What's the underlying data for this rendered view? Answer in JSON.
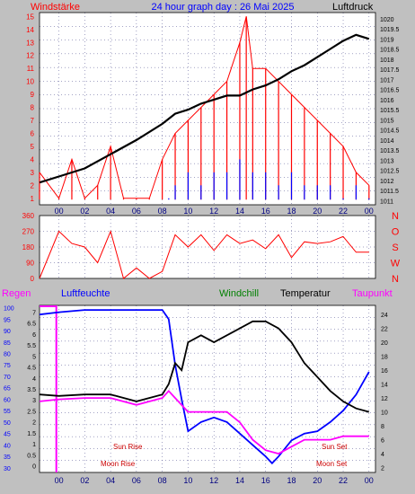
{
  "header": {
    "left_label": "Windstärke",
    "title": "24 hour graph day : 26 Mai 2025",
    "right_label": "Luftdruck"
  },
  "colors": {
    "panel_bg": "#c0c0c0",
    "plot_bg": "#ffffff",
    "grid": "#4a4a8c",
    "red": "#ff0000",
    "blue": "#0000ff",
    "black": "#000000",
    "magenta": "#ff00ff",
    "dark_red": "#cc0000",
    "green": "#008000"
  },
  "legend": {
    "regen": "Regen",
    "luftfeuchte": "Luftfeuchte",
    "windchill": "Windchill",
    "temperatur": "Temperatur",
    "taupunkt": "Taupunkt"
  },
  "annotations": {
    "sun_rise": "Sun Rise",
    "moon_rise": "Moon Rise",
    "sun_set": "Sun Set",
    "moon_set": "Moon Set"
  },
  "x_ticks": [
    "00",
    "02",
    "04",
    "06",
    "08",
    "10",
    "12",
    "14",
    "16",
    "18",
    "20",
    "22",
    "00"
  ],
  "chart_data": [
    {
      "type": "line",
      "name": "wind-pressure",
      "x_unit": "hour",
      "xlim": [
        -1.5,
        24.5
      ],
      "left_axis": {
        "title": "Windstärke",
        "ticks": [
          "1",
          "2",
          "3",
          "4",
          "5",
          "6",
          "7",
          "8",
          "9",
          "10",
          "11",
          "12",
          "13",
          "14",
          "15"
        ],
        "ylim": [
          0.5,
          15.3
        ]
      },
      "right_axis": {
        "title": "Luftdruck",
        "ticks": [
          "1011",
          "1011.5",
          "1012",
          "1012.5",
          "1013",
          "1013.5",
          "1014",
          "1014.5",
          "1015",
          "1015.5",
          "1016",
          "1016.5",
          "1017",
          "1017.5",
          "1018",
          "1018.5",
          "1019",
          "1019.5",
          "1020"
        ],
        "ylim": [
          1010.8,
          1020.3
        ]
      },
      "series": [
        {
          "name": "Luftdruck",
          "color": "#000000",
          "x": [
            -1.5,
            0,
            2,
            4,
            6,
            8,
            9,
            10,
            11,
            12,
            13,
            14,
            15,
            16,
            17,
            18,
            19,
            20,
            21,
            22,
            23,
            24
          ],
          "values": [
            1011.9,
            1012.2,
            1012.6,
            1013.3,
            1014.0,
            1014.8,
            1015.3,
            1015.5,
            1015.8,
            1016.0,
            1016.2,
            1016.2,
            1016.5,
            1016.7,
            1017.0,
            1017.4,
            1017.7,
            1018.1,
            1018.5,
            1018.9,
            1019.2,
            1019.0
          ]
        },
        {
          "name": "wind gust",
          "color": "#ff0000",
          "x": [
            -1.5,
            0,
            1,
            2,
            3,
            4,
            5,
            6,
            7,
            8,
            9,
            10,
            11,
            12,
            13,
            14,
            14.5,
            15,
            16,
            17,
            18,
            19,
            20,
            21,
            22,
            23,
            24
          ],
          "values": [
            3,
            1,
            4,
            1,
            2,
            5,
            1,
            1,
            1,
            4,
            6,
            7,
            8,
            9,
            10,
            13,
            15,
            11,
            11,
            10,
            9,
            8,
            7,
            6,
            5,
            3,
            2
          ]
        },
        {
          "name": "wind average",
          "color": "#0000ff",
          "x": [
            8.5,
            9,
            10,
            11,
            12,
            13,
            14,
            15,
            16,
            17,
            18,
            19,
            20,
            21,
            22,
            23,
            24
          ],
          "values": [
            1,
            2,
            3,
            2,
            3,
            3,
            4,
            3,
            3,
            2,
            3,
            2,
            2,
            2,
            1,
            2,
            1
          ]
        }
      ]
    },
    {
      "type": "line",
      "name": "wind-direction",
      "x_unit": "hour",
      "xlim": [
        -1.5,
        24.5
      ],
      "left_axis": {
        "ticks": [
          "0",
          "90",
          "180",
          "270",
          "360"
        ],
        "ylim": [
          0,
          360
        ]
      },
      "right_axis": {
        "ticks": [
          "N",
          "W",
          "S",
          "O",
          "N"
        ]
      },
      "series": [
        {
          "name": "direction",
          "color": "#ff0000",
          "x": [
            -1.5,
            0,
            1,
            2,
            3,
            4,
            5,
            6,
            7,
            8,
            9,
            10,
            11,
            12,
            13,
            14,
            15,
            16,
            17,
            18,
            19,
            20,
            21,
            22,
            23,
            24
          ],
          "values": [
            0,
            270,
            200,
            180,
            90,
            270,
            0,
            60,
            0,
            40,
            250,
            180,
            250,
            160,
            250,
            200,
            220,
            170,
            250,
            120,
            210,
            200,
            210,
            240,
            150,
            150
          ]
        }
      ]
    },
    {
      "type": "line",
      "name": "rain-humidity-temperature",
      "x_unit": "hour",
      "xlim": [
        -1.5,
        24.5
      ],
      "left_axis_rain": {
        "ticks": [
          "0",
          "0.5",
          "1",
          "1.5",
          "2",
          "2.5",
          "3",
          "3.5",
          "4",
          "4.5",
          "5",
          "5.5",
          "6",
          "6.5",
          "7"
        ],
        "ylim": [
          -0.3,
          7.3
        ]
      },
      "left_axis_humidity": {
        "ticks": [
          "30",
          "35",
          "40",
          "45",
          "50",
          "55",
          "60",
          "65",
          "70",
          "75",
          "80",
          "85",
          "90",
          "95",
          "100"
        ],
        "ylim": [
          28,
          101
        ]
      },
      "right_axis_temperature": {
        "ticks": [
          "2",
          "4",
          "6",
          "8",
          "10",
          "12",
          "14",
          "16",
          "18",
          "20",
          "22",
          "24"
        ],
        "ylim": [
          1.3,
          25.3
        ]
      },
      "series": [
        {
          "name": "Luftfeuchte",
          "color": "#0000ff",
          "x": [
            -1.5,
            0,
            2,
            4,
            6,
            8,
            8.5,
            9,
            9.5,
            10,
            11,
            12,
            13,
            14,
            15,
            16,
            16.5,
            17,
            18,
            19,
            20,
            21,
            22,
            23,
            24
          ],
          "values": [
            97,
            98,
            99,
            99,
            99,
            99,
            95,
            75,
            60,
            46,
            50,
            52,
            50,
            45,
            40,
            35,
            32,
            35,
            42,
            45,
            46,
            50,
            55,
            62,
            72
          ]
        },
        {
          "name": "Temperatur",
          "color": "#000000",
          "x": [
            -1.5,
            0,
            2,
            4,
            6,
            8,
            8.5,
            9,
            9.5,
            10,
            11,
            12,
            13,
            14,
            15,
            16,
            17,
            18,
            19,
            20,
            21,
            22,
            23,
            24
          ],
          "values": [
            12.5,
            12.3,
            12.5,
            12.5,
            11.5,
            12.5,
            14,
            17,
            16,
            20,
            21,
            20,
            21,
            22,
            23,
            23,
            22,
            20,
            17,
            15,
            13,
            11.5,
            10.5,
            10
          ]
        },
        {
          "name": "Taupunkt",
          "color": "#ff00ff",
          "x": [
            -1.5,
            0,
            2,
            4,
            6,
            8,
            8.5,
            9,
            10,
            11,
            12,
            13,
            14,
            15,
            16,
            17,
            18,
            19,
            20,
            21,
            22,
            23,
            24
          ],
          "values": [
            11.5,
            11.8,
            12,
            12,
            11,
            12,
            13,
            12,
            10,
            10,
            10,
            10,
            8.5,
            6,
            4.5,
            4,
            5,
            6,
            6,
            6,
            6.5,
            6.5,
            6.5
          ]
        }
      ]
    }
  ]
}
